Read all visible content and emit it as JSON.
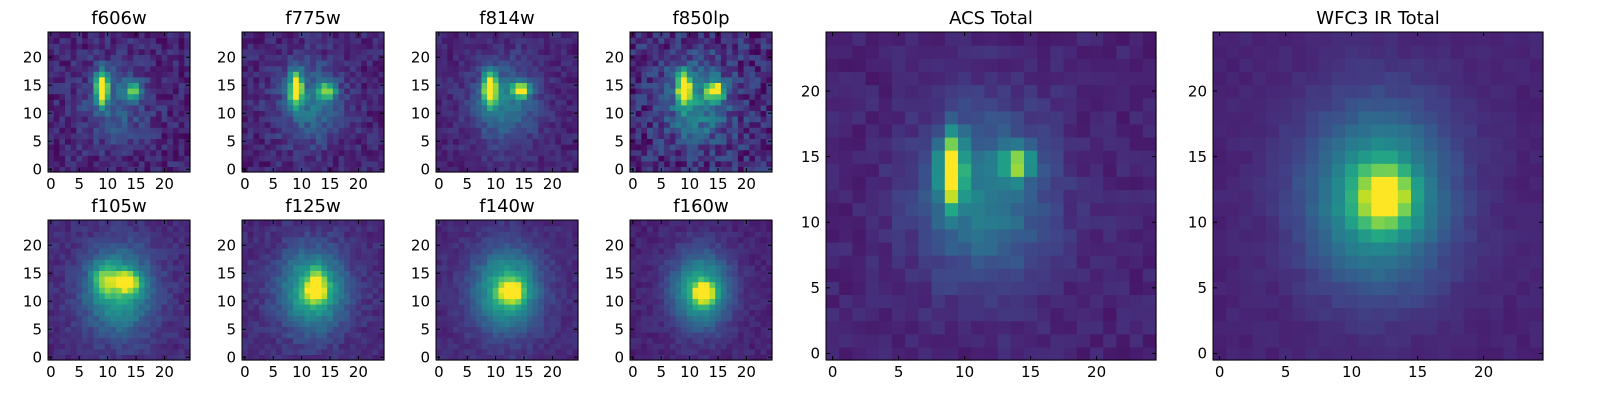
{
  "figure": {
    "colormap": "viridis",
    "vmin": 0,
    "vmax": 1
  },
  "chart_data": [
    {
      "type": "heatmap",
      "title": "f606w",
      "xlabel": "",
      "ylabel": "",
      "xlim": [
        0,
        24
      ],
      "ylim": [
        0,
        24
      ],
      "xticks": [
        0,
        5,
        10,
        15,
        20
      ],
      "yticks": [
        0,
        5,
        10,
        15,
        20
      ],
      "sources": [
        {
          "x": 9,
          "y": 14.5,
          "sx": 0.8,
          "sy": 2.0,
          "amp": 1.0
        },
        {
          "x": 14.5,
          "y": 14,
          "sx": 1.0,
          "sy": 1.0,
          "amp": 0.6
        },
        {
          "x": 11.5,
          "y": 12,
          "sx": 3.8,
          "sy": 5.0,
          "amp": 0.22
        }
      ],
      "background": 0.1,
      "noise": 0.09
    },
    {
      "type": "heatmap",
      "title": "f775w",
      "xlabel": "",
      "ylabel": "",
      "xlim": [
        0,
        24
      ],
      "ylim": [
        0,
        24
      ],
      "xticks": [
        0,
        5,
        10,
        15,
        20
      ],
      "yticks": [
        0,
        5,
        10,
        15,
        20
      ],
      "sources": [
        {
          "x": 9,
          "y": 14.5,
          "sx": 0.8,
          "sy": 2.0,
          "amp": 1.0
        },
        {
          "x": 14.5,
          "y": 14,
          "sx": 1.0,
          "sy": 1.0,
          "amp": 0.65
        },
        {
          "x": 11.5,
          "y": 12,
          "sx": 4.0,
          "sy": 5.0,
          "amp": 0.28
        }
      ],
      "background": 0.1,
      "noise": 0.08
    },
    {
      "type": "heatmap",
      "title": "f814w",
      "xlabel": "",
      "ylabel": "",
      "xlim": [
        0,
        24
      ],
      "ylim": [
        0,
        24
      ],
      "xticks": [
        0,
        5,
        10,
        15,
        20
      ],
      "yticks": [
        0,
        5,
        10,
        15,
        20
      ],
      "sources": [
        {
          "x": 9,
          "y": 14.5,
          "sx": 0.8,
          "sy": 2.0,
          "amp": 1.0
        },
        {
          "x": 14.5,
          "y": 14.2,
          "sx": 1.0,
          "sy": 0.9,
          "amp": 0.85
        },
        {
          "x": 11.5,
          "y": 12,
          "sx": 4.0,
          "sy": 5.0,
          "amp": 0.32
        }
      ],
      "background": 0.1,
      "noise": 0.06
    },
    {
      "type": "heatmap",
      "title": "f850lp",
      "xlabel": "",
      "ylabel": "",
      "xlim": [
        0,
        24
      ],
      "ylim": [
        0,
        24
      ],
      "xticks": [
        0,
        5,
        10,
        15,
        20
      ],
      "yticks": [
        0,
        5,
        10,
        15,
        20
      ],
      "sources": [
        {
          "x": 9,
          "y": 14.5,
          "sx": 0.8,
          "sy": 2.0,
          "amp": 1.0
        },
        {
          "x": 14.5,
          "y": 14.2,
          "sx": 1.1,
          "sy": 1.0,
          "amp": 0.9
        },
        {
          "x": 11.5,
          "y": 12,
          "sx": 4.0,
          "sy": 5.0,
          "amp": 0.35
        }
      ],
      "background": 0.12,
      "noise": 0.13
    },
    {
      "type": "heatmap",
      "title": "f105w",
      "xlabel": "",
      "ylabel": "",
      "xlim": [
        0,
        24
      ],
      "ylim": [
        0,
        24
      ],
      "xticks": [
        0,
        5,
        10,
        15,
        20
      ],
      "yticks": [
        0,
        5,
        10,
        15,
        20
      ],
      "sources": [
        {
          "x": 13.5,
          "y": 13.5,
          "sx": 1.3,
          "sy": 1.2,
          "amp": 0.75
        },
        {
          "x": 9.5,
          "y": 14,
          "sx": 1.5,
          "sy": 2.0,
          "amp": 0.4
        },
        {
          "x": 12,
          "y": 12,
          "sx": 4.2,
          "sy": 5.2,
          "amp": 0.5
        }
      ],
      "background": 0.12,
      "noise": 0.05
    },
    {
      "type": "heatmap",
      "title": "f125w",
      "xlabel": "",
      "ylabel": "",
      "xlim": [
        0,
        24
      ],
      "ylim": [
        0,
        24
      ],
      "xticks": [
        0,
        5,
        10,
        15,
        20
      ],
      "yticks": [
        0,
        5,
        10,
        15,
        20
      ],
      "sources": [
        {
          "x": 12.5,
          "y": 12,
          "sx": 1.2,
          "sy": 1.2,
          "amp": 0.8
        },
        {
          "x": 12.8,
          "y": 14.5,
          "sx": 1.0,
          "sy": 1.2,
          "amp": 0.3
        },
        {
          "x": 12,
          "y": 12,
          "sx": 4.0,
          "sy": 5.0,
          "amp": 0.55
        }
      ],
      "background": 0.12,
      "noise": 0.05
    },
    {
      "type": "heatmap",
      "title": "f140w",
      "xlabel": "",
      "ylabel": "",
      "xlim": [
        0,
        24
      ],
      "ylim": [
        0,
        24
      ],
      "xticks": [
        0,
        5,
        10,
        15,
        20
      ],
      "yticks": [
        0,
        5,
        10,
        15,
        20
      ],
      "sources": [
        {
          "x": 12.8,
          "y": 11.8,
          "sx": 1.4,
          "sy": 1.3,
          "amp": 0.75
        },
        {
          "x": 12,
          "y": 12,
          "sx": 4.0,
          "sy": 5.0,
          "amp": 0.55
        }
      ],
      "background": 0.12,
      "noise": 0.04
    },
    {
      "type": "heatmap",
      "title": "f160w",
      "xlabel": "",
      "ylabel": "",
      "xlim": [
        0,
        24
      ],
      "ylim": [
        0,
        24
      ],
      "xticks": [
        0,
        5,
        10,
        15,
        20
      ],
      "yticks": [
        0,
        5,
        10,
        15,
        20
      ],
      "sources": [
        {
          "x": 12.5,
          "y": 11.5,
          "sx": 1.2,
          "sy": 1.2,
          "amp": 0.8
        },
        {
          "x": 12,
          "y": 12,
          "sx": 3.6,
          "sy": 4.6,
          "amp": 0.55
        }
      ],
      "background": 0.1,
      "noise": 0.04
    },
    {
      "type": "heatmap",
      "title": "ACS Total",
      "xlabel": "",
      "ylabel": "",
      "xlim": [
        0,
        24
      ],
      "ylim": [
        0,
        24
      ],
      "xticks": [
        0,
        5,
        10,
        15,
        20
      ],
      "yticks": [
        0,
        5,
        10,
        15,
        20
      ],
      "sources": [
        {
          "x": 9,
          "y": 14,
          "sx": 0.6,
          "sy": 1.8,
          "amp": 0.95
        },
        {
          "x": 14,
          "y": 14.5,
          "sx": 0.8,
          "sy": 0.8,
          "amp": 0.6
        },
        {
          "x": 11.5,
          "y": 12,
          "sx": 3.5,
          "sy": 4.5,
          "amp": 0.33
        }
      ],
      "background": 0.1,
      "noise": 0.04
    },
    {
      "type": "heatmap",
      "title": "WFC3 IR Total",
      "xlabel": "",
      "ylabel": "",
      "xlim": [
        0,
        24
      ],
      "ylim": [
        0,
        24
      ],
      "xticks": [
        0,
        5,
        10,
        15,
        20
      ],
      "yticks": [
        0,
        5,
        10,
        15,
        20
      ],
      "sources": [
        {
          "x": 12.5,
          "y": 12,
          "sx": 1.4,
          "sy": 1.5,
          "amp": 0.6
        },
        {
          "x": 12,
          "y": 12,
          "sx": 3.8,
          "sy": 4.8,
          "amp": 0.5
        }
      ],
      "background": 0.1,
      "noise": 0.02
    }
  ]
}
